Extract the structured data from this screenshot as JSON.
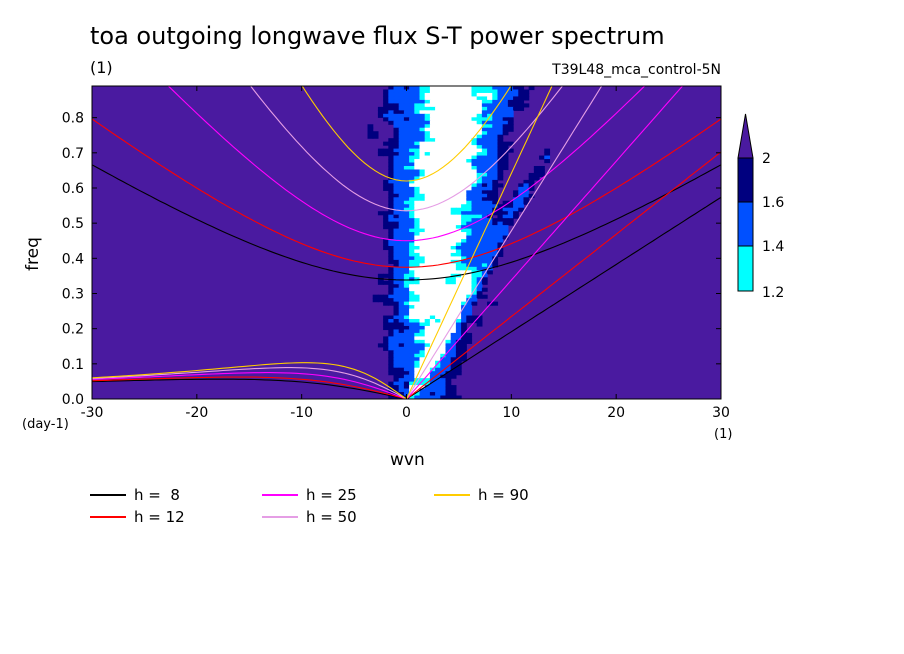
{
  "title": "toa outgoing longwave flux S-T power spectrum",
  "units_label": "(1)",
  "run_label": "T39L48_mca_control-5N",
  "colorbar": {
    "ticks": [
      "2",
      "1.6",
      "1.4",
      "1.2"
    ],
    "colors": [
      "#00007f",
      "#0050ff",
      "#00ffff",
      "#4a1aa0"
    ]
  },
  "chart_data": {
    "type": "heatmap",
    "title": "toa outgoing longwave flux S-T power spectrum",
    "xlabel": "wvn",
    "ylabel": "freq",
    "x_units": "(1)",
    "y_units": "(day-1)",
    "xlim": [
      -30,
      30
    ],
    "ylim": [
      0,
      0.89
    ],
    "x_ticks": [
      "-30",
      "-20",
      "-10",
      "0",
      "10",
      "20",
      "30"
    ],
    "y_ticks": [
      "0.0",
      "0.1",
      "0.2",
      "0.3",
      "0.4",
      "0.5",
      "0.6",
      "0.7",
      "0.8"
    ],
    "contour_levels": [
      1.2,
      1.4,
      1.6,
      2
    ],
    "level_colors": [
      "#00ffff",
      "#0050ff",
      "#00007f",
      "#4a1aa0"
    ],
    "background_color": "#4a1aa0",
    "series": [
      {
        "name": "h =  8",
        "color": "#000000",
        "equivalent_depth": 8
      },
      {
        "name": "h = 12",
        "color": "#ff0000",
        "equivalent_depth": 12
      },
      {
        "name": "h = 25",
        "color": "#ff00ff",
        "equivalent_depth": 25
      },
      {
        "name": "h = 50",
        "color": "#e59ee5",
        "equivalent_depth": 50
      },
      {
        "name": "h = 90",
        "color": "#ffcc00",
        "equivalent_depth": 90
      }
    ]
  },
  "legend": [
    {
      "label": "h =  8",
      "color": "#000000"
    },
    {
      "label": "h = 12",
      "color": "#ff0000"
    },
    {
      "label": "h = 25",
      "color": "#ff00ff"
    },
    {
      "label": "h = 50",
      "color": "#e59ee5"
    },
    {
      "label": "h = 90",
      "color": "#ffcc00"
    }
  ]
}
